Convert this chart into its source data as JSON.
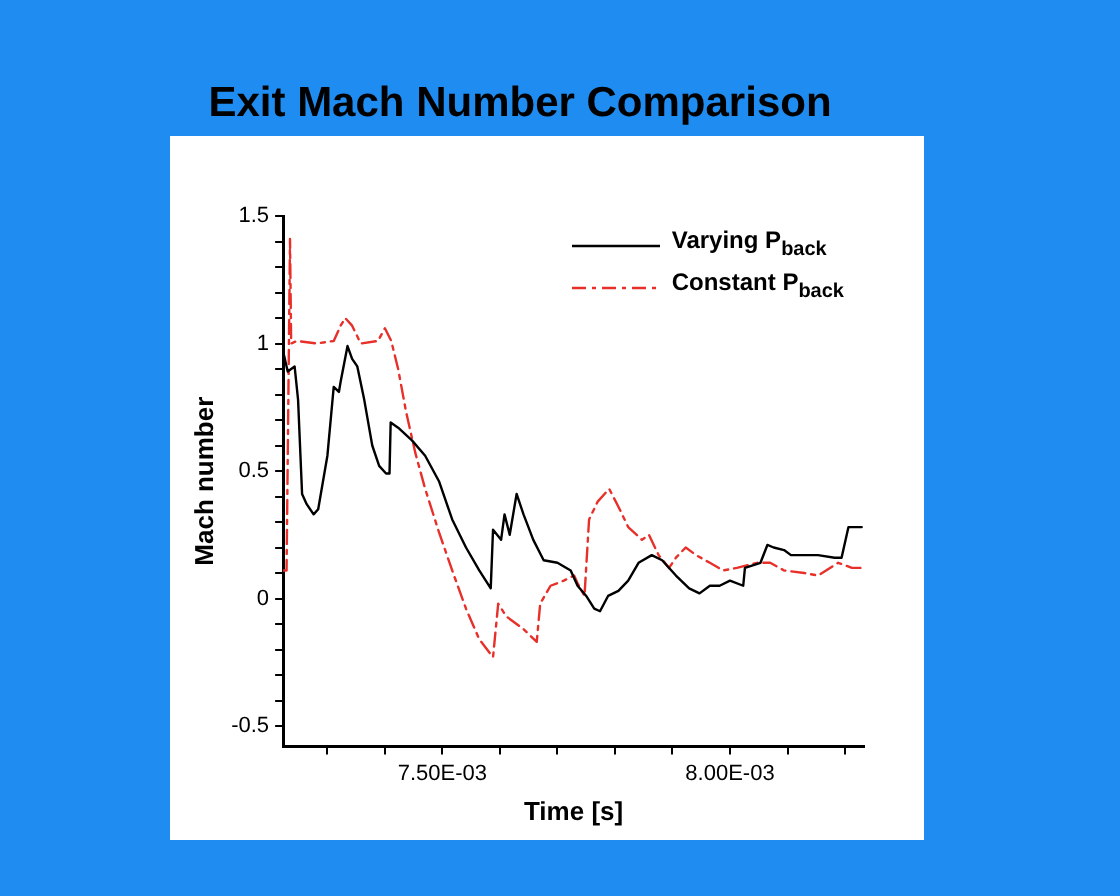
{
  "chart_data": {
    "type": "line",
    "title": "Exit Mach Number Comparison",
    "xlabel": "Time [s]",
    "ylabel": "Mach number",
    "xlim": [
      0.007223,
      0.008233
    ],
    "ylim": [
      -0.58,
      1.5
    ],
    "xticks": [
      {
        "value": 0.0073,
        "label": null
      },
      {
        "value": 0.0074,
        "label": null
      },
      {
        "value": 0.0075,
        "label": "7.50E-03"
      },
      {
        "value": 0.0076,
        "label": null
      },
      {
        "value": 0.0077,
        "label": null
      },
      {
        "value": 0.0078,
        "label": null
      },
      {
        "value": 0.0079,
        "label": null
      },
      {
        "value": 0.008,
        "label": "8.00E-03"
      },
      {
        "value": 0.0081,
        "label": null
      },
      {
        "value": 0.0082,
        "label": null
      }
    ],
    "yticks": [
      -0.5,
      {
        "value": -0.4,
        "label": null
      },
      {
        "value": -0.3,
        "label": null
      },
      {
        "value": -0.2,
        "label": null
      },
      {
        "value": -0.1,
        "label": null
      },
      0,
      {
        "value": 0.1,
        "label": null
      },
      {
        "value": 0.2,
        "label": null
      },
      {
        "value": 0.3,
        "label": null
      },
      {
        "value": 0.4,
        "label": null
      },
      0.5,
      {
        "value": 0.6,
        "label": null
      },
      {
        "value": 0.7,
        "label": null
      },
      {
        "value": 0.8,
        "label": null
      },
      {
        "value": 0.9,
        "label": null
      },
      1,
      {
        "value": 1.1,
        "label": null
      },
      {
        "value": 1.2,
        "label": null
      },
      {
        "value": 1.3,
        "label": null
      },
      {
        "value": 1.4,
        "label": null
      },
      1.5
    ],
    "legend": "top right",
    "marker": "none",
    "series": [
      {
        "name": "Varying P$_{back}$",
        "color": "#000000",
        "line_style": "solid",
        "x": [
          0.007223,
          0.007231,
          0.007243,
          0.007249,
          0.007256,
          0.007264,
          0.007276,
          0.007284,
          0.0073,
          0.007311,
          0.00732,
          0.007323,
          0.007335,
          0.007343,
          0.007352,
          0.007364,
          0.007378,
          0.00739,
          0.007402,
          0.007408,
          0.00741,
          0.007423,
          0.007447,
          0.00747,
          0.007494,
          0.007517,
          0.007541,
          0.007564,
          0.007584,
          0.007588,
          0.007602,
          0.007608,
          0.007617,
          0.007629,
          0.007641,
          0.007658,
          0.007676,
          0.0077,
          0.007723,
          0.007735,
          0.00775,
          0.007764,
          0.007774,
          0.007788,
          0.007806,
          0.007823,
          0.007841,
          0.007864,
          0.007882,
          0.007906,
          0.007929,
          0.007947,
          0.007965,
          0.007982,
          0.008,
          0.008023,
          0.008026,
          0.008053,
          0.008065,
          0.008076,
          0.008094,
          0.008106,
          0.008129,
          0.008153,
          0.008182,
          0.008194,
          0.008206,
          0.008229
        ],
        "values": [
          0.97,
          0.89,
          0.91,
          0.78,
          0.41,
          0.37,
          0.33,
          0.35,
          0.56,
          0.83,
          0.81,
          0.85,
          0.99,
          0.94,
          0.91,
          0.78,
          0.6,
          0.52,
          0.49,
          0.49,
          0.69,
          0.67,
          0.62,
          0.56,
          0.46,
          0.31,
          0.2,
          0.11,
          0.04,
          0.27,
          0.23,
          0.33,
          0.25,
          0.41,
          0.33,
          0.23,
          0.15,
          0.14,
          0.11,
          0.05,
          0.01,
          -0.04,
          -0.05,
          0.01,
          0.03,
          0.07,
          0.14,
          0.17,
          0.15,
          0.09,
          0.04,
          0.02,
          0.05,
          0.05,
          0.07,
          0.05,
          0.12,
          0.14,
          0.21,
          0.2,
          0.19,
          0.17,
          0.17,
          0.17,
          0.16,
          0.16,
          0.28,
          0.28
        ]
      },
      {
        "name": "Constant P$_{back}$",
        "color": "#e8302a",
        "line_style": "dashed",
        "x": [
          0.007223,
          0.007229,
          0.007235,
          0.007237,
          0.007247,
          0.007282,
          0.007311,
          0.007323,
          0.007331,
          0.007343,
          0.007358,
          0.007388,
          0.0074,
          0.007411,
          0.007423,
          0.007437,
          0.007453,
          0.00747,
          0.007494,
          0.007517,
          0.007541,
          0.007564,
          0.007588,
          0.007597,
          0.007611,
          0.007641,
          0.007664,
          0.00767,
          0.007688,
          0.007711,
          0.007729,
          0.007735,
          0.007747,
          0.007755,
          0.00777,
          0.00779,
          0.007806,
          0.007823,
          0.007847,
          0.007859,
          0.007876,
          0.007894,
          0.007906,
          0.007923,
          0.007941,
          0.007965,
          0.007988,
          0.008012,
          0.008047,
          0.00807,
          0.008094,
          0.008129,
          0.008153,
          0.008188,
          0.008212,
          0.008229
        ],
        "values": [
          0.11,
          0.11,
          1.41,
          1.0,
          1.01,
          1.0,
          1.01,
          1.07,
          1.1,
          1.07,
          1.0,
          1.01,
          1.06,
          1.01,
          0.9,
          0.73,
          0.57,
          0.43,
          0.26,
          0.11,
          -0.04,
          -0.16,
          -0.23,
          -0.02,
          -0.07,
          -0.12,
          -0.17,
          -0.02,
          0.05,
          0.07,
          0.09,
          0.06,
          0.01,
          0.31,
          0.38,
          0.43,
          0.36,
          0.28,
          0.23,
          0.25,
          0.17,
          0.12,
          0.16,
          0.2,
          0.17,
          0.14,
          0.11,
          0.12,
          0.14,
          0.14,
          0.11,
          0.1,
          0.09,
          0.14,
          0.12,
          0.12
        ]
      }
    ]
  }
}
